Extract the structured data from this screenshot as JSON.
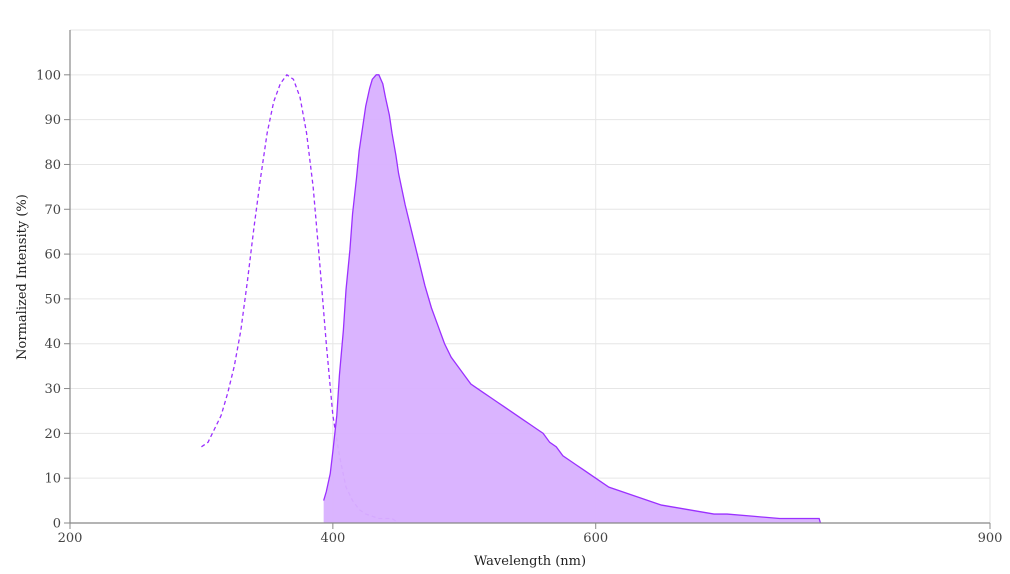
{
  "chart_data": {
    "type": "area",
    "title": "",
    "xlabel": "Wavelength (nm)",
    "ylabel": "Normalized Intensity (%)",
    "xlim": [
      200,
      900
    ],
    "ylim": [
      0,
      110
    ],
    "xticks": [
      200,
      400,
      600,
      900
    ],
    "yticks": [
      0,
      10,
      20,
      30,
      40,
      50,
      60,
      70,
      80,
      90,
      100
    ],
    "grid": true,
    "legend": "none",
    "series": [
      {
        "style": "dashed-line",
        "color": "#9b30ff",
        "x": [
          300,
          305,
          310,
          315,
          320,
          325,
          330,
          335,
          340,
          345,
          350,
          355,
          360,
          365,
          370,
          375,
          380,
          385,
          390,
          395,
          400,
          405,
          410,
          415,
          420,
          425,
          430,
          435,
          440,
          445,
          450
        ],
        "y": [
          17,
          18,
          21,
          24,
          29,
          35,
          43,
          54,
          66,
          77,
          87,
          94,
          98,
          100,
          99,
          95,
          87,
          75,
          58,
          40,
          24,
          15,
          8,
          5,
          3,
          2,
          1.5,
          1,
          1,
          1,
          0
        ]
      },
      {
        "style": "filled-area",
        "color": "#9b30ff",
        "fill": "#d8b0ff",
        "x": [
          393,
          395,
          398,
          400,
          403,
          405,
          408,
          410,
          413,
          415,
          418,
          420,
          423,
          425,
          428,
          430,
          433,
          435,
          438,
          440,
          443,
          445,
          448,
          450,
          455,
          460,
          465,
          470,
          475,
          480,
          485,
          490,
          495,
          500,
          505,
          510,
          515,
          520,
          525,
          530,
          535,
          540,
          545,
          550,
          555,
          560,
          565,
          570,
          575,
          580,
          585,
          590,
          595,
          600,
          610,
          620,
          630,
          640,
          650,
          660,
          670,
          680,
          690,
          700,
          720,
          740,
          760,
          770,
          771
        ],
        "y": [
          5,
          7,
          11,
          16,
          24,
          33,
          43,
          52,
          61,
          69,
          77,
          83,
          89,
          93,
          97,
          99,
          100,
          100,
          98,
          95,
          91,
          87,
          82,
          78,
          71,
          65,
          59,
          53,
          48,
          44,
          40,
          37,
          35,
          33,
          31,
          30,
          29,
          28,
          27,
          26,
          25,
          24,
          23,
          22,
          21,
          20,
          18,
          17,
          15,
          14,
          13,
          12,
          11,
          10,
          8,
          7,
          6,
          5,
          4,
          3.5,
          3,
          2.5,
          2,
          2,
          1.5,
          1,
          1,
          1,
          0
        ]
      }
    ]
  }
}
